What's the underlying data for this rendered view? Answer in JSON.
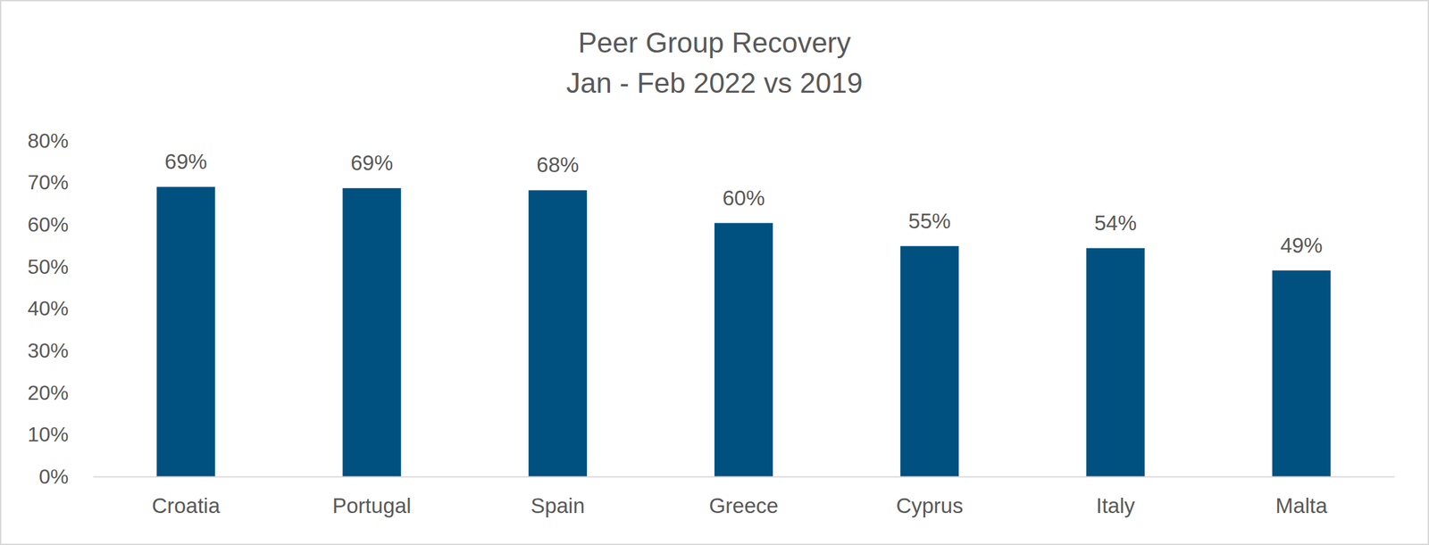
{
  "chart_data": {
    "type": "bar",
    "title": "Peer Group Recovery",
    "subtitle": "Jan - Feb 2022 vs 2019",
    "categories": [
      "Croatia",
      "Portugal",
      "Spain",
      "Greece",
      "Cyprus",
      "Italy",
      "Malta"
    ],
    "values": [
      69,
      68.7,
      68.2,
      60.4,
      54.9,
      54.4,
      49.1
    ],
    "value_labels": [
      "69%",
      "69%",
      "68%",
      "60%",
      "55%",
      "54%",
      "49%"
    ],
    "color": "#00517f",
    "ylim": [
      0,
      80
    ],
    "yticks": [
      {
        "value": 0,
        "label": "0%"
      },
      {
        "value": 10,
        "label": "10%"
      },
      {
        "value": 20,
        "label": "20%"
      },
      {
        "value": 30,
        "label": "30%"
      },
      {
        "value": 40,
        "label": "40%"
      },
      {
        "value": 50,
        "label": "50%"
      },
      {
        "value": 60,
        "label": "60%"
      },
      {
        "value": 70,
        "label": "70%"
      },
      {
        "value": 80,
        "label": "80%"
      }
    ],
    "grid": false,
    "data_labels": true
  }
}
